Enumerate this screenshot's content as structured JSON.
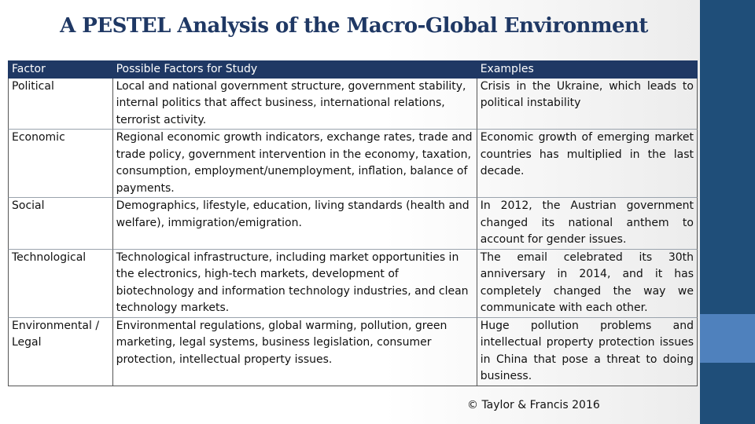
{
  "title": "A PESTEL Analysis of the Macro-Global Environment",
  "table": {
    "headers": [
      "Factor",
      "Possible Factors for Study",
      "Examples"
    ],
    "rows": [
      {
        "factor": "Political",
        "factors": "Local and national government structure, government stability, internal politics that affect business, international relations, terrorist activity.",
        "examples": "Crisis in the Ukraine, which leads to political instability"
      },
      {
        "factor": "Economic",
        "factors": "Regional economic growth indicators, exchange rates, trade and trade policy, government intervention in the economy, taxation, consumption, employment/unemployment, inflation, balance of payments.",
        "examples": "Economic growth of emerging market countries has multiplied in the last decade."
      },
      {
        "factor": "Social",
        "factors": "Demographics, lifestyle, education, living standards (health and welfare), immigration/emigration.",
        "examples": "In 2012, the Austrian government changed its national anthem to account for gender issues."
      },
      {
        "factor": "Technological",
        "factors": "Technological infrastructure, including market opportunities in the electronics, high-tech markets, development of biotechnology and information technology industries, and clean technology markets.",
        "examples": "The email celebrated its 30th anniversary in 2014, and it has completely changed the way we communicate with each other."
      },
      {
        "factor": "Environmental / Legal",
        "factors": "Environmental regulations, global warming, pollution, green marketing, legal systems, business legislation, consumer protection, intellectual property issues.",
        "examples": "Huge pollution problems and intellectual property protection issues in China that pose a threat to doing business."
      }
    ]
  },
  "copyright": "© Taylor & Francis 2016",
  "colors": {
    "header_bg": "#1f3864",
    "sidebar_dark": "#1f4e79",
    "sidebar_light": "#4f81bd",
    "title": "#1f3864"
  }
}
